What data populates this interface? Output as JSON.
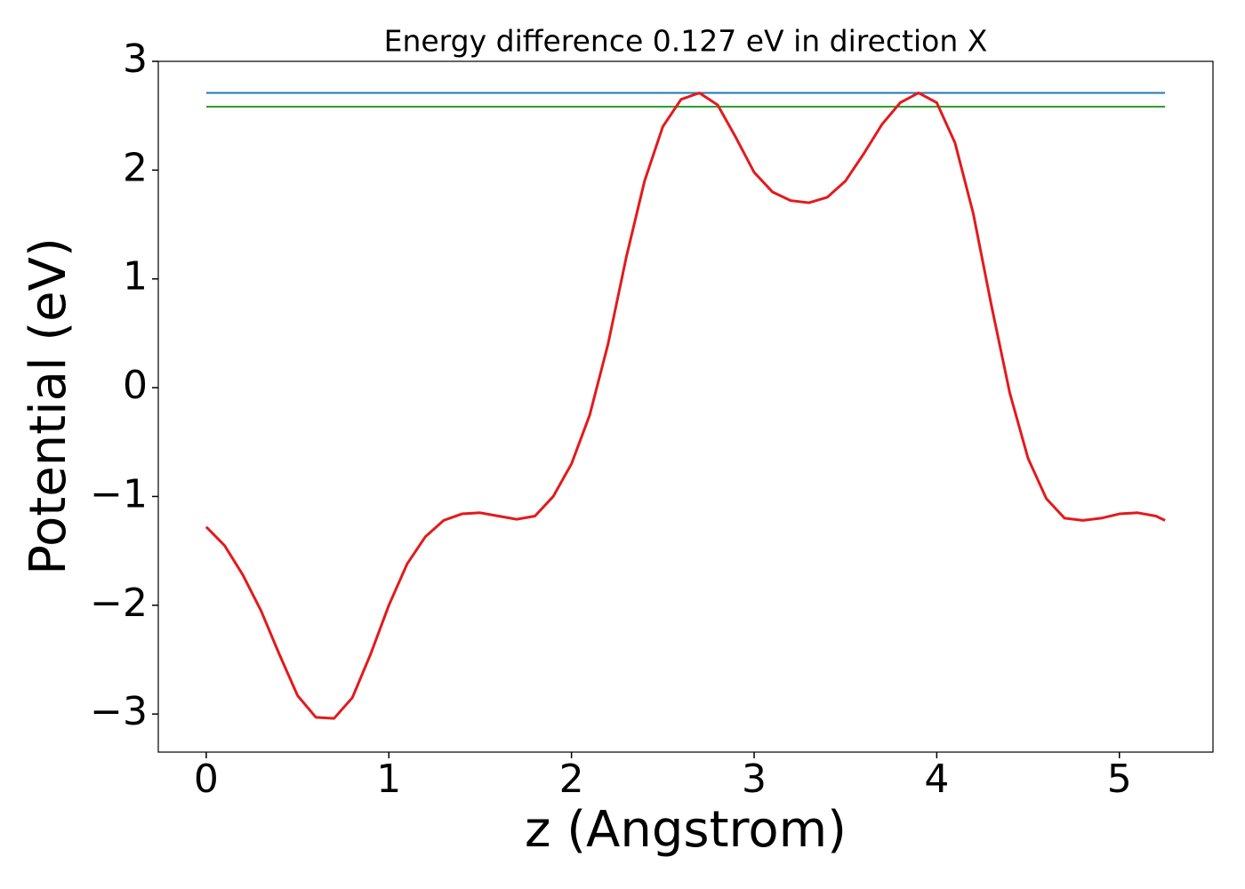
{
  "chart_data": {
    "type": "line",
    "title": "Energy difference 0.127 eV in direction X",
    "x_label": "z (Angstrom)",
    "y_label": "Potential (eV)",
    "xlim": [
      -0.2625,
      5.5125
    ],
    "ylim": [
      -3.35,
      3.0
    ],
    "xticks": [
      0,
      1,
      2,
      3,
      4,
      5
    ],
    "yticks": [
      {
        "value": -3,
        "label": "−3"
      },
      {
        "value": -2,
        "label": "−2"
      },
      {
        "value": -1,
        "label": "−1"
      },
      0,
      1,
      2,
      3
    ],
    "grid": false,
    "series": [
      {
        "color": "#1f77b4",
        "x": [
          0,
          5.25
        ],
        "values": [
          2.71,
          2.71
        ]
      },
      {
        "color": "#2ca02c",
        "x": [
          0,
          5.25
        ],
        "values": [
          2.583,
          2.583
        ]
      },
      {
        "color": "#e31a1c",
        "x": [
          0,
          0.1,
          0.2,
          0.3,
          0.4,
          0.5,
          0.6,
          0.7,
          0.8,
          0.9,
          1.0,
          1.1,
          1.2,
          1.3,
          1.4,
          1.5,
          1.6,
          1.7,
          1.8,
          1.9,
          2.0,
          2.1,
          2.2,
          2.3,
          2.4,
          2.5,
          2.6,
          2.7,
          2.8,
          2.9,
          3.0,
          3.1,
          3.2,
          3.3,
          3.4,
          3.5,
          3.6,
          3.7,
          3.8,
          3.9,
          4.0,
          4.1,
          4.2,
          4.3,
          4.4,
          4.5,
          4.6,
          4.7,
          4.8,
          4.9,
          5.0,
          5.1,
          5.2,
          5.25
        ],
        "values": [
          -1.28,
          -1.45,
          -1.72,
          -2.05,
          -2.45,
          -2.83,
          -3.03,
          -3.04,
          -2.85,
          -2.45,
          -2.0,
          -1.62,
          -1.37,
          -1.22,
          -1.16,
          -1.15,
          -1.18,
          -1.21,
          -1.18,
          -1.0,
          -0.7,
          -0.25,
          0.4,
          1.2,
          1.9,
          2.4,
          2.65,
          2.71,
          2.6,
          2.3,
          1.98,
          1.8,
          1.72,
          1.7,
          1.75,
          1.9,
          2.15,
          2.42,
          2.62,
          2.71,
          2.62,
          2.25,
          1.6,
          0.75,
          -0.05,
          -0.65,
          -1.02,
          -1.2,
          -1.22,
          -1.2,
          -1.16,
          -1.15,
          -1.18,
          -1.22
        ]
      }
    ]
  }
}
